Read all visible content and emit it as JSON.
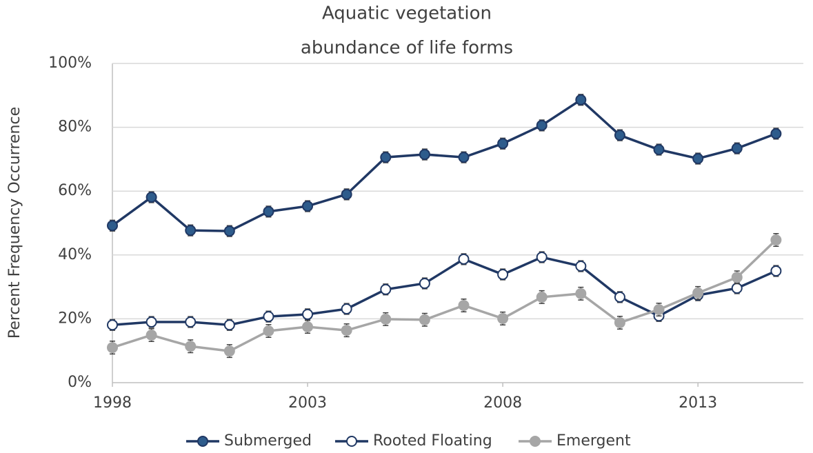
{
  "chart_data": {
    "type": "line",
    "title": [
      "Aquatic vegetation",
      "abundance of life forms"
    ],
    "y_label": "Percent Frequency Occurrence",
    "x": [
      1998,
      1999,
      2000,
      2001,
      2002,
      2003,
      2004,
      2005,
      2006,
      2007,
      2008,
      2009,
      2010,
      2011,
      2012,
      2013,
      2014,
      2015
    ],
    "xlim": [
      1998,
      2015.7
    ],
    "xticks": [
      1998,
      2003,
      2008,
      2013
    ],
    "ylim": [
      0,
      100
    ],
    "yticks": [
      {
        "value": 0,
        "label": "0%"
      },
      {
        "value": 20,
        "label": "20%"
      },
      {
        "value": 40,
        "label": "40%"
      },
      {
        "value": 60,
        "label": "60%"
      },
      {
        "value": 80,
        "label": "80%"
      },
      {
        "value": 100,
        "label": "100%"
      }
    ],
    "grid": true,
    "legend": "bottom",
    "series": [
      {
        "name": "Submerged",
        "color": "#203864",
        "marker_fill": "#2e5c8c",
        "values": [
          49.2,
          58.1,
          47.7,
          47.5,
          53.6,
          55.3,
          59.0,
          70.6,
          71.5,
          70.6,
          74.9,
          80.6,
          88.6,
          77.5,
          73.0,
          70.2,
          73.4,
          78.0
        ],
        "errors": [
          1.7,
          1.7,
          1.7,
          1.7,
          1.7,
          1.7,
          1.7,
          1.7,
          1.7,
          1.7,
          1.7,
          1.7,
          1.7,
          1.7,
          1.7,
          1.7,
          1.7,
          1.7
        ]
      },
      {
        "name": "Rooted Floating",
        "color": "#203864",
        "marker_fill": "#ffffff",
        "values": [
          18.1,
          19.0,
          19.0,
          18.1,
          20.7,
          21.4,
          23.1,
          29.2,
          31.1,
          38.7,
          33.9,
          39.3,
          36.5,
          26.8,
          20.9,
          27.4,
          29.6,
          35.0
        ],
        "errors": [
          1.7,
          1.7,
          1.7,
          1.7,
          1.7,
          1.7,
          1.7,
          1.7,
          1.7,
          1.7,
          1.7,
          1.7,
          1.7,
          1.7,
          1.7,
          1.7,
          1.7,
          1.7
        ]
      },
      {
        "name": "Emergent",
        "color": "#a6a6a6",
        "marker_fill": "#a6a6a6",
        "values": [
          11.0,
          14.9,
          11.4,
          9.9,
          16.2,
          17.5,
          16.4,
          19.9,
          19.7,
          24.2,
          20.1,
          26.8,
          27.9,
          18.8,
          22.9,
          28.1,
          33.0,
          44.7
        ],
        "errors": [
          2.0,
          2.0,
          2.0,
          2.0,
          2.0,
          2.0,
          2.0,
          2.0,
          2.0,
          2.0,
          2.0,
          2.0,
          2.0,
          2.0,
          2.0,
          2.0,
          2.0,
          2.0
        ]
      }
    ]
  }
}
